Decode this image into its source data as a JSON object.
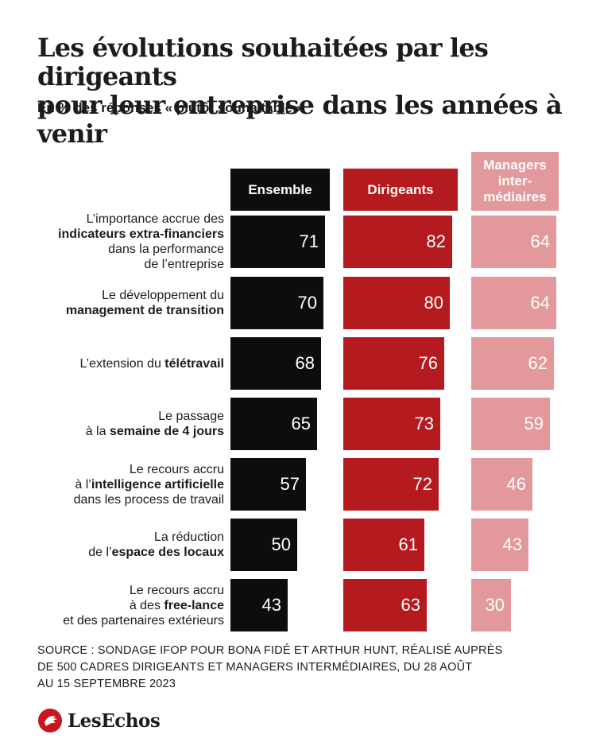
{
  "title_line1": "Les évolutions souhaitées par les dirigeants",
  "title_line2": "pour leur entreprise dans les années à venir",
  "subtitle": "En % des réponses « plutôt souhaitable »",
  "source_line1": "SOURCE : SONDAGE IFOP POUR BONA FIDÉ ET ARTHUR HUNT, RÉALISÉ AUPRÈS",
  "source_line2": "DE 500 CADRES DIRIGEANTS ET MANAGERS INTERMÉDIAIRES, DU 28 AOÛT",
  "source_line3": "AU 15 SEPTEMBRE 2023",
  "logo_text": "LesEchos",
  "colors": {
    "ensemble": "#0d0d0d",
    "dirigeants": "#b51a1f",
    "managers": "#e3999b"
  },
  "chart_data": {
    "type": "bar",
    "orientation": "horizontal",
    "categories": [
      {
        "parts": [
          [
            {
              "t": "L’importance accrue des",
              "b": false
            }
          ],
          [
            {
              "t": "indicateurs extra-financiers",
              "b": true
            }
          ],
          [
            {
              "t": "dans la performance",
              "b": false
            }
          ],
          [
            {
              "t": "de l’entreprise",
              "b": false
            }
          ]
        ]
      },
      {
        "parts": [
          [
            {
              "t": "Le développement du",
              "b": false
            }
          ],
          [
            {
              "t": "management de transition",
              "b": true
            }
          ]
        ]
      },
      {
        "parts": [
          [
            {
              "t": "L’extension du ",
              "b": false
            },
            {
              "t": "télétravail",
              "b": true
            }
          ]
        ]
      },
      {
        "parts": [
          [
            {
              "t": "Le passage",
              "b": false
            }
          ],
          [
            {
              "t": "à la ",
              "b": false
            },
            {
              "t": "semaine de 4 jours",
              "b": true
            }
          ]
        ]
      },
      {
        "parts": [
          [
            {
              "t": "Le recours accru",
              "b": false
            }
          ],
          [
            {
              "t": "à l’",
              "b": false
            },
            {
              "t": "intelligence artificielle",
              "b": true
            }
          ],
          [
            {
              "t": "dans les process de travail",
              "b": false
            }
          ]
        ]
      },
      {
        "parts": [
          [
            {
              "t": "La réduction",
              "b": false
            }
          ],
          [
            {
              "t": "de l’",
              "b": false
            },
            {
              "t": "espace des locaux",
              "b": true
            }
          ]
        ]
      },
      {
        "parts": [
          [
            {
              "t": "Le recours accru",
              "b": false
            }
          ],
          [
            {
              "t": "à des ",
              "b": false
            },
            {
              "t": "free-lance",
              "b": true
            }
          ],
          [
            {
              "t": "et des partenaires extérieurs",
              "b": false
            }
          ]
        ]
      }
    ],
    "series": [
      {
        "name": "Ensemble",
        "header_lines": [
          "Ensemble"
        ],
        "color": "#0d0d0d",
        "values": [
          71,
          70,
          68,
          65,
          57,
          50,
          43
        ]
      },
      {
        "name": "Dirigeants",
        "header_lines": [
          "Dirigeants"
        ],
        "color": "#b51a1f",
        "values": [
          82,
          80,
          76,
          73,
          72,
          61,
          63
        ]
      },
      {
        "name": "Managers intermédiaires",
        "header_lines": [
          "Managers",
          "inter-",
          "médiaires"
        ],
        "color": "#e3999b",
        "values": [
          64,
          64,
          62,
          59,
          46,
          43,
          30
        ]
      }
    ],
    "xlim": [
      0,
      85
    ]
  }
}
